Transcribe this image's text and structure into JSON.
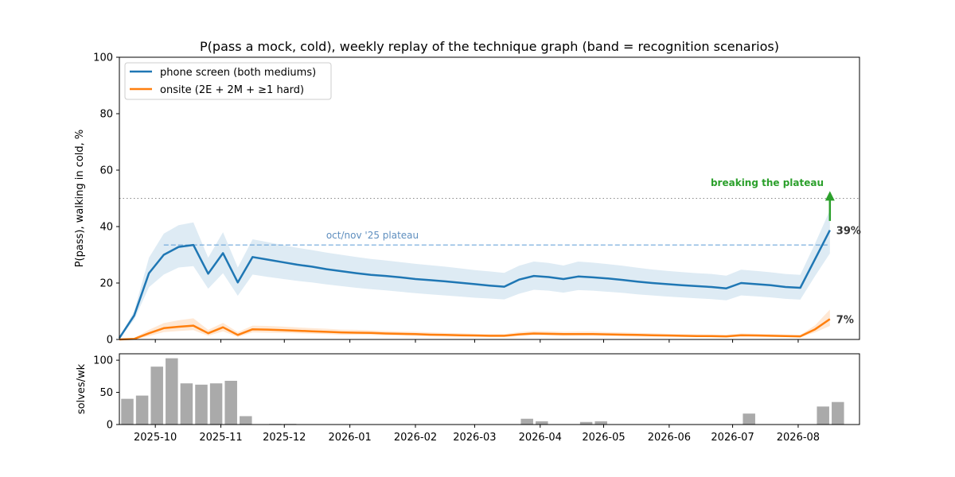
{
  "colors": {
    "phone": "#1f77b4",
    "onsite": "#ff7f0e",
    "bars": "#aaaaaa",
    "threshold": "#888888",
    "plateau": "#5b9bd5",
    "arrow": "#2ca02c"
  },
  "chart_data": [
    {
      "type": "line",
      "title": "P(pass a mock, cold), weekly replay of the technique graph (band = recognition scenarios)",
      "ylabel": "P(pass), walking in cold, %",
      "xlim": [
        "2025-09-14",
        "2026-08-30"
      ],
      "ylim": [
        0,
        100
      ],
      "yticks": [
        0,
        20,
        40,
        60,
        80,
        100
      ],
      "xticks": [
        "2025-10",
        "2025-11",
        "2025-12",
        "2026-01",
        "2026-02",
        "2026-03",
        "2026-04",
        "2026-05",
        "2026-06",
        "2026-07",
        "2026-08"
      ],
      "xtick_dates": [
        "2025-10-01",
        "2025-11-01",
        "2025-12-01",
        "2026-01-01",
        "2026-02-01",
        "2026-03-01",
        "2026-04-01",
        "2026-05-01",
        "2026-06-01",
        "2026-07-01",
        "2026-08-01"
      ],
      "legend": {
        "placement": "top-left"
      },
      "x": [
        "2025-09-14",
        "2025-09-21",
        "2025-09-28",
        "2025-10-05",
        "2025-10-12",
        "2025-10-19",
        "2025-10-26",
        "2025-11-02",
        "2025-11-09",
        "2025-11-16",
        "2025-11-23",
        "2025-11-30",
        "2025-12-07",
        "2025-12-14",
        "2025-12-21",
        "2025-12-28",
        "2026-01-04",
        "2026-01-11",
        "2026-01-18",
        "2026-01-25",
        "2026-02-01",
        "2026-02-08",
        "2026-02-15",
        "2026-02-22",
        "2026-03-01",
        "2026-03-08",
        "2026-03-15",
        "2026-03-22",
        "2026-03-29",
        "2026-04-05",
        "2026-04-12",
        "2026-04-19",
        "2026-04-26",
        "2026-05-03",
        "2026-05-10",
        "2026-05-17",
        "2026-05-24",
        "2026-05-31",
        "2026-06-07",
        "2026-06-14",
        "2026-06-21",
        "2026-06-28",
        "2026-07-05",
        "2026-07-12",
        "2026-07-19",
        "2026-07-26",
        "2026-08-02",
        "2026-08-09",
        "2026-08-16"
      ],
      "series": [
        {
          "name": "phone screen (both mediums)",
          "values": [
            0.5,
            8.5,
            23.5,
            30.0,
            32.8,
            33.5,
            23.3,
            30.6,
            20.2,
            29.2,
            28.3,
            27.4,
            26.5,
            25.8,
            24.9,
            24.2,
            23.5,
            22.9,
            22.5,
            22.0,
            21.4,
            21.0,
            20.6,
            20.1,
            19.6,
            19.1,
            18.7,
            21.2,
            22.5,
            22.1,
            21.4,
            22.3,
            22.0,
            21.6,
            21.1,
            20.5,
            20.0,
            19.6,
            19.2,
            18.9,
            18.6,
            18.1,
            20.0,
            19.6,
            19.2,
            18.6,
            18.3,
            28.5,
            38.7
          ],
          "band_low": [
            0.3,
            7.0,
            18.5,
            23.0,
            25.5,
            26.0,
            18.0,
            23.5,
            15.5,
            23.0,
            22.2,
            21.5,
            20.8,
            20.2,
            19.5,
            18.9,
            18.3,
            17.8,
            17.4,
            16.9,
            16.4,
            16.0,
            15.6,
            15.2,
            14.8,
            14.5,
            14.2,
            16.2,
            17.6,
            17.3,
            16.6,
            17.5,
            17.3,
            16.9,
            16.5,
            16.0,
            15.6,
            15.2,
            14.9,
            14.6,
            14.3,
            13.9,
            15.6,
            15.3,
            14.9,
            14.4,
            14.1,
            22.5,
            30.5
          ],
          "band_high": [
            0.8,
            10.0,
            29.0,
            37.5,
            40.5,
            41.5,
            29.0,
            38.0,
            25.5,
            35.5,
            34.5,
            33.5,
            32.5,
            31.7,
            30.8,
            30.0,
            29.2,
            28.5,
            28.0,
            27.4,
            26.8,
            26.3,
            25.8,
            25.2,
            24.6,
            24.1,
            23.6,
            26.1,
            27.6,
            27.1,
            26.2,
            27.6,
            27.2,
            26.7,
            26.1,
            25.4,
            24.8,
            24.3,
            23.9,
            23.5,
            23.2,
            22.6,
            24.7,
            24.3,
            23.8,
            23.2,
            22.9,
            34.0,
            45.8
          ]
        },
        {
          "name": "onsite (2E + 2M + ≥1 hard)",
          "values": [
            0.0,
            0.2,
            2.2,
            4.0,
            4.5,
            4.9,
            2.2,
            4.3,
            1.6,
            3.6,
            3.5,
            3.3,
            3.1,
            2.9,
            2.7,
            2.5,
            2.4,
            2.3,
            2.1,
            2.0,
            1.9,
            1.7,
            1.6,
            1.5,
            1.4,
            1.3,
            1.3,
            1.8,
            2.1,
            2.0,
            1.9,
            1.9,
            1.9,
            1.8,
            1.7,
            1.6,
            1.5,
            1.4,
            1.3,
            1.2,
            1.2,
            1.1,
            1.5,
            1.4,
            1.3,
            1.2,
            1.1,
            3.6,
            7.2
          ],
          "band_low": [
            0.0,
            0.1,
            1.2,
            2.6,
            3.0,
            3.3,
            1.3,
            2.9,
            0.9,
            2.5,
            2.4,
            2.3,
            2.2,
            2.0,
            1.9,
            1.7,
            1.7,
            1.6,
            1.5,
            1.4,
            1.3,
            1.2,
            1.1,
            1.0,
            1.0,
            0.9,
            0.9,
            1.3,
            1.5,
            1.4,
            1.3,
            1.4,
            1.4,
            1.3,
            1.2,
            1.1,
            1.1,
            1.0,
            0.9,
            0.9,
            0.8,
            0.8,
            1.1,
            1.0,
            0.9,
            0.9,
            0.8,
            2.5,
            4.8
          ],
          "band_high": [
            0.1,
            0.5,
            3.4,
            5.8,
            6.8,
            7.5,
            3.4,
            5.9,
            2.6,
            4.9,
            4.8,
            4.6,
            4.3,
            4.0,
            3.8,
            3.5,
            3.4,
            3.2,
            3.0,
            2.8,
            2.7,
            2.5,
            2.3,
            2.2,
            2.0,
            1.9,
            1.9,
            2.6,
            3.0,
            2.9,
            2.7,
            2.8,
            2.8,
            2.6,
            2.5,
            2.3,
            2.2,
            2.0,
            1.9,
            1.8,
            1.7,
            1.6,
            2.1,
            2.0,
            1.9,
            1.7,
            1.6,
            5.0,
            10.6
          ]
        }
      ],
      "reference_lines": [
        {
          "y": 50,
          "style": "dotted",
          "from": "2025-09-14",
          "to": "2026-08-30"
        },
        {
          "y": 33.5,
          "style": "dashed",
          "from": "2025-10-05",
          "to": "2026-08-16",
          "label": "oct/nov '25 plateau"
        }
      ],
      "end_labels": [
        "39%",
        "7%"
      ],
      "annotation": {
        "text": "breaking the plateau",
        "arrow_x": "2026-08-16",
        "arrow_from_y": 42,
        "arrow_to_y": 52
      }
    },
    {
      "type": "bar",
      "ylabel": "solves/wk",
      "ylim": [
        0,
        110
      ],
      "yticks": [
        0,
        50,
        100
      ],
      "x": [
        "2025-09-14",
        "2025-09-21",
        "2025-09-28",
        "2025-10-05",
        "2025-10-12",
        "2025-10-19",
        "2025-10-26",
        "2025-11-02",
        "2025-11-09",
        "2025-11-16",
        "2025-11-23",
        "2025-11-30",
        "2025-12-07",
        "2025-12-14",
        "2025-12-21",
        "2025-12-28",
        "2026-01-04",
        "2026-01-11",
        "2026-01-18",
        "2026-01-25",
        "2026-02-01",
        "2026-02-08",
        "2026-02-15",
        "2026-02-22",
        "2026-03-01",
        "2026-03-08",
        "2026-03-15",
        "2026-03-22",
        "2026-03-29",
        "2026-04-05",
        "2026-04-12",
        "2026-04-19",
        "2026-04-26",
        "2026-05-03",
        "2026-05-10",
        "2026-05-17",
        "2026-05-24",
        "2026-05-31",
        "2026-06-07",
        "2026-06-14",
        "2026-06-21",
        "2026-06-28",
        "2026-07-05",
        "2026-07-12",
        "2026-07-19",
        "2026-07-26",
        "2026-08-02",
        "2026-08-09",
        "2026-08-16"
      ],
      "values": [
        40,
        45,
        90,
        103,
        64,
        62,
        64,
        68,
        13,
        0,
        1,
        1,
        0,
        0,
        0,
        0,
        0,
        0,
        0,
        0,
        0,
        0,
        0,
        0,
        0,
        0,
        0,
        9,
        5,
        0,
        0,
        4,
        5,
        0,
        0,
        0,
        0,
        0,
        0,
        0,
        0,
        0,
        17,
        0,
        0,
        0,
        0,
        28,
        35
      ]
    }
  ]
}
